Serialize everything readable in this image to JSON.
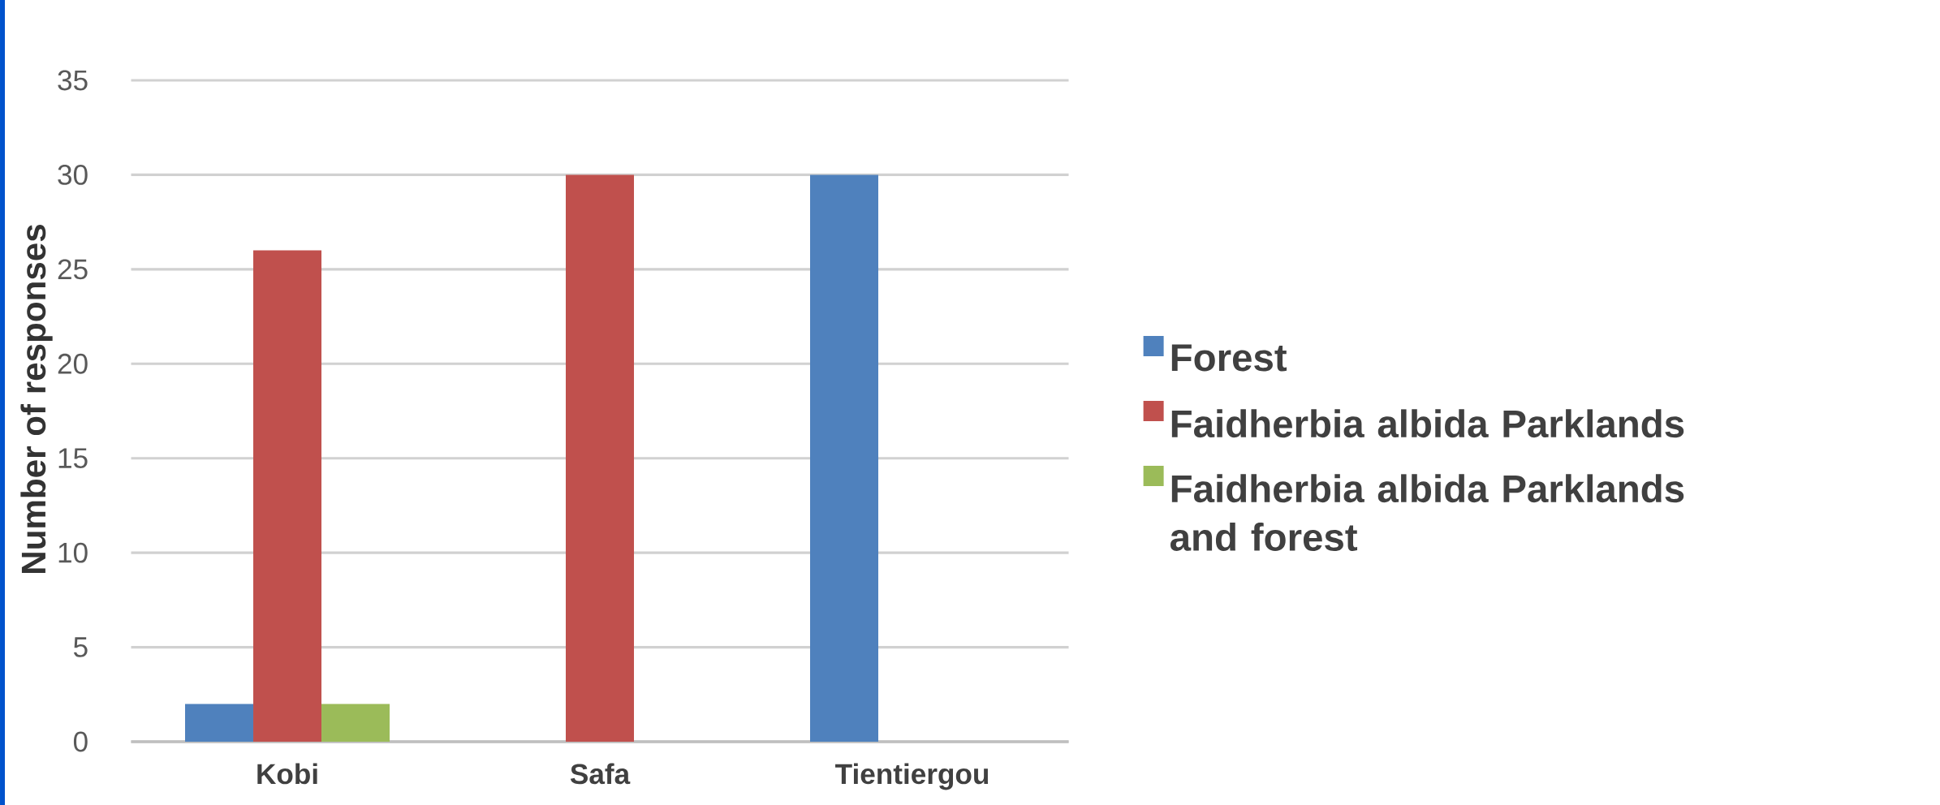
{
  "chart_data": {
    "type": "bar",
    "ylabel": "Number of responses",
    "categories": [
      "Kobi",
      "Safa",
      "Tientiergou"
    ],
    "series": [
      {
        "name": "Forest",
        "color": "#4f81bd",
        "values": [
          2,
          0,
          30
        ]
      },
      {
        "name": "Faidherbia albida Parklands",
        "color": "#c0504d",
        "values": [
          26,
          30,
          0
        ]
      },
      {
        "name": "Faidherbia albida Parklands and forest",
        "color": "#9bbb59",
        "values": [
          2,
          0,
          0
        ]
      }
    ],
    "ylim": [
      0,
      35
    ],
    "yticks": [
      0,
      5,
      10,
      15,
      20,
      25,
      30,
      35
    ],
    "grid": "y",
    "legend": "right"
  }
}
